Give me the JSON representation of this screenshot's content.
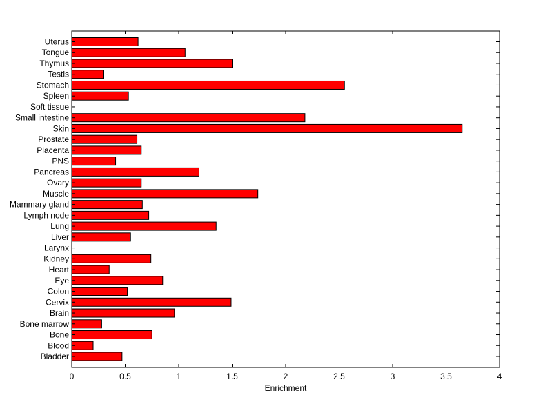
{
  "chart_data": {
    "type": "bar",
    "orientation": "horizontal",
    "xlabel": "Enrichment",
    "ylabel": "",
    "title": "",
    "xlim": [
      0,
      4
    ],
    "x_ticks": [
      "0",
      "0.5",
      "1",
      "1.5",
      "2",
      "2.5",
      "3",
      "3.5",
      "4"
    ],
    "grid": false,
    "bar_color": "#ff0000",
    "categories": [
      "Bladder",
      "Blood",
      "Bone",
      "Bone marrow",
      "Brain",
      "Cervix",
      "Colon",
      "Eye",
      "Heart",
      "Kidney",
      "Larynx",
      "Liver",
      "Lung",
      "Lymph node",
      "Mammary gland",
      "Muscle",
      "Ovary",
      "Pancreas",
      "PNS",
      "Placenta",
      "Prostate",
      "Skin",
      "Small intestine",
      "Soft tissue",
      "Spleen",
      "Stomach",
      "Testis",
      "Thymus",
      "Tongue",
      "Uterus"
    ],
    "values": [
      0.47,
      0.2,
      0.75,
      0.28,
      0.96,
      1.49,
      0.52,
      0.85,
      0.35,
      0.74,
      0.0,
      0.55,
      1.35,
      0.72,
      0.66,
      1.74,
      0.65,
      1.19,
      0.41,
      0.65,
      0.61,
      3.65,
      2.18,
      0.0,
      0.53,
      2.55,
      0.3,
      1.5,
      1.06,
      0.62
    ]
  }
}
